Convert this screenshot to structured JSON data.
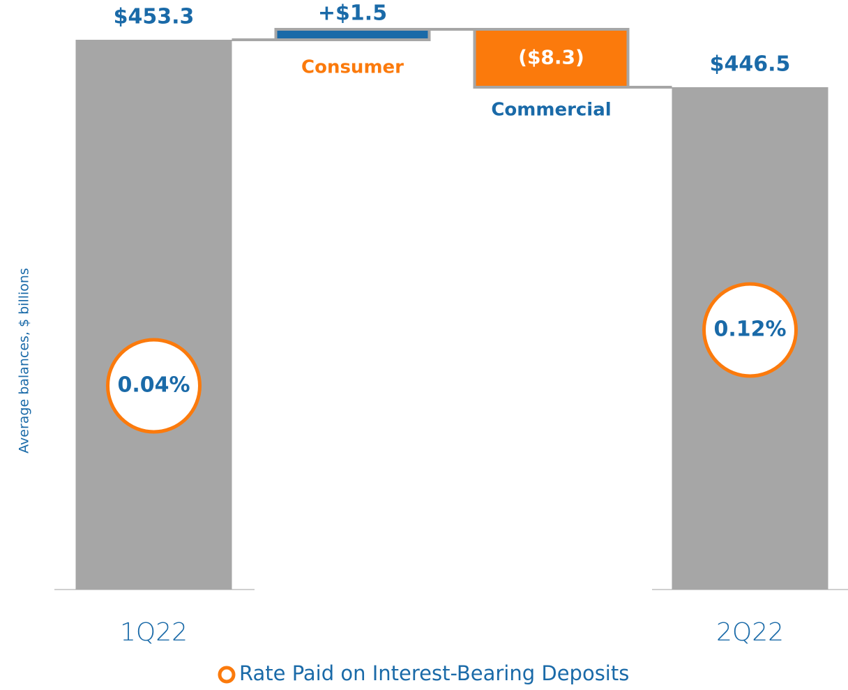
{
  "chart_data": {
    "type": "waterfall",
    "y_axis_label": "Average balances, $ billions",
    "categories": [
      "1Q22",
      "Consumer",
      "Commercial",
      "2Q22"
    ],
    "measure": [
      "total",
      "relative",
      "relative",
      "total"
    ],
    "values": [
      453.3,
      1.5,
      -8.3,
      446.5
    ],
    "value_labels": [
      "$453.3",
      "+$1.5",
      "($8.3)",
      "$446.5"
    ],
    "colors": {
      "total": "#a6a6a6",
      "increase": "#1a6aa8",
      "decrease": "#fb7a0c"
    },
    "rates": {
      "name": "Rate Paid on Interest-Bearing Deposits",
      "color": "#fb7a0c",
      "values": [
        0.04,
        null,
        null,
        0.12
      ],
      "value_labels": [
        "0.04%",
        null,
        null,
        "0.12%"
      ]
    },
    "ylim": [
      374.5,
      459
    ]
  }
}
